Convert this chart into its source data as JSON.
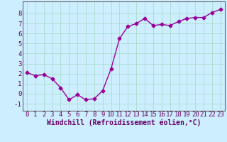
{
  "x": [
    0,
    1,
    2,
    3,
    4,
    5,
    6,
    7,
    8,
    9,
    10,
    11,
    12,
    13,
    14,
    15,
    16,
    17,
    18,
    19,
    20,
    21,
    22,
    23
  ],
  "y": [
    2.1,
    1.8,
    1.9,
    1.5,
    0.6,
    -0.6,
    -0.1,
    -0.6,
    -0.5,
    0.3,
    2.5,
    5.5,
    6.7,
    7.0,
    7.5,
    6.8,
    6.9,
    6.8,
    7.2,
    7.5,
    7.6,
    7.6,
    8.1,
    8.4
  ],
  "line_color": "#990099",
  "marker": "D",
  "markersize": 2.5,
  "linewidth": 1.0,
  "bg_color": "#cceeff",
  "grid_color": "#aaddcc",
  "xlabel": "Windchill (Refroidissement éolien,°C)",
  "xlabel_fontsize": 7,
  "tick_fontsize": 6.5,
  "xlim": [
    -0.5,
    23.5
  ],
  "ylim": [
    -1.7,
    9.2
  ],
  "yticks": [
    -1,
    0,
    1,
    2,
    3,
    4,
    5,
    6,
    7,
    8
  ],
  "xticks": [
    0,
    1,
    2,
    3,
    4,
    5,
    6,
    7,
    8,
    9,
    10,
    11,
    12,
    13,
    14,
    15,
    16,
    17,
    18,
    19,
    20,
    21,
    22,
    23
  ]
}
